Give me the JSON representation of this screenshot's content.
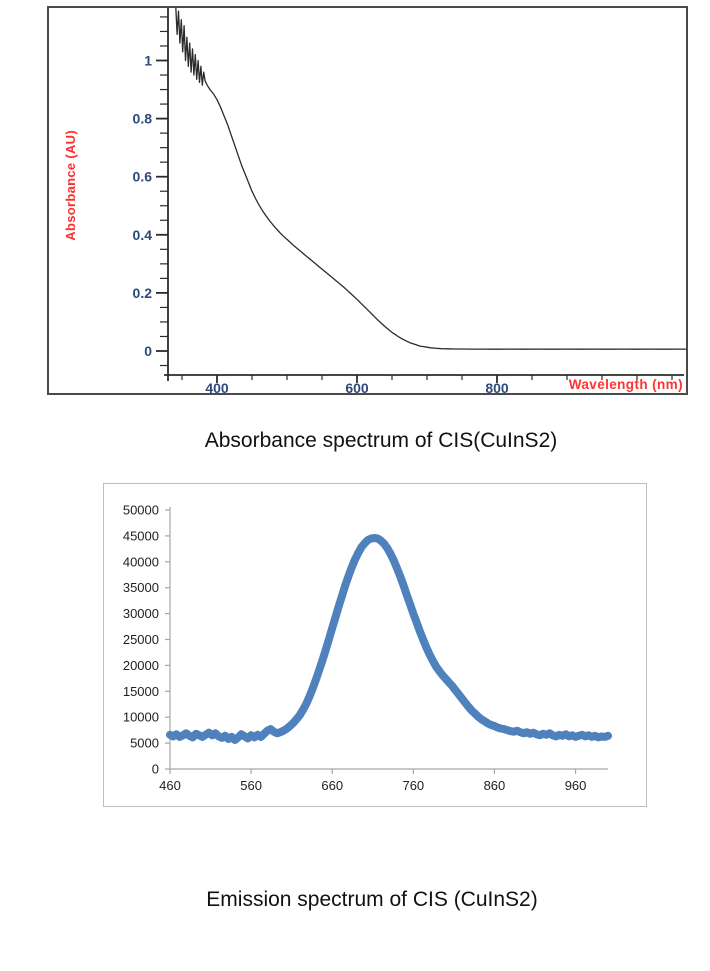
{
  "figures": [
    {
      "caption": "Absorbance spectrum of CIS(CuInS2)"
    },
    {
      "caption": "Emission spectrum of CIS (CuInS2)"
    }
  ],
  "chart_data": [
    {
      "type": "line",
      "title": "",
      "xlabel": "Wavelength (nm)",
      "ylabel": "Absorbance (AU)",
      "xlim": [
        333,
        1080
      ],
      "ylim": [
        -0.1,
        1.18
      ],
      "grid": false,
      "legend": "none",
      "x_ticks": [
        400,
        600,
        800
      ],
      "x_minor_tick_step": 50,
      "x_minor_tick_range": [
        350,
        1050
      ],
      "y_ticks": [
        0,
        0.2,
        0.4,
        0.6,
        0.8,
        1
      ],
      "y_tick_labels": [
        "0",
        "0.2",
        "0.4",
        "0.6",
        "0.8",
        "1"
      ],
      "y_minor_tick_step": 0.05,
      "colors": {
        "curve": "#2b2b2b",
        "axis": "#2b2b2b",
        "axis_title": "#ff2d2d",
        "tick_label": "#2e4a7a",
        "frame": "#4a4a4a"
      },
      "series": [
        {
          "name": "absorbance",
          "x": [
            341,
            343,
            345,
            347,
            349,
            351,
            353,
            355,
            357,
            359,
            361,
            363,
            365,
            367,
            369,
            371,
            373,
            375,
            377,
            379,
            381,
            383,
            386,
            390,
            395,
            400,
            405,
            410,
            415,
            420,
            425,
            430,
            435,
            440,
            445,
            450,
            455,
            460,
            465,
            470,
            475,
            480,
            485,
            490,
            495,
            500,
            505,
            510,
            515,
            520,
            525,
            530,
            535,
            540,
            545,
            550,
            555,
            560,
            565,
            570,
            575,
            580,
            585,
            590,
            595,
            600,
            605,
            610,
            615,
            620,
            625,
            630,
            635,
            640,
            645,
            650,
            655,
            660,
            665,
            670,
            675,
            680,
            685,
            690,
            695,
            700,
            705,
            710,
            715,
            720,
            730,
            740,
            750,
            760,
            780,
            800,
            820,
            840,
            860,
            880,
            900,
            920,
            940,
            960,
            980,
            1000,
            1020,
            1040,
            1060,
            1080
          ],
          "y": [
            1.19,
            1.09,
            1.17,
            1.06,
            1.14,
            1.03,
            1.12,
            1.0,
            1.08,
            0.98,
            1.06,
            0.96,
            1.04,
            0.95,
            1.02,
            0.935,
            1.0,
            0.925,
            0.98,
            0.915,
            0.96,
            0.93,
            0.915,
            0.9,
            0.885,
            0.865,
            0.84,
            0.81,
            0.78,
            0.745,
            0.71,
            0.675,
            0.64,
            0.61,
            0.58,
            0.55,
            0.525,
            0.503,
            0.483,
            0.465,
            0.449,
            0.434,
            0.42,
            0.407,
            0.395,
            0.384,
            0.373,
            0.362,
            0.352,
            0.342,
            0.332,
            0.322,
            0.312,
            0.302,
            0.292,
            0.282,
            0.272,
            0.262,
            0.252,
            0.242,
            0.232,
            0.222,
            0.211,
            0.2,
            0.189,
            0.178,
            0.166,
            0.154,
            0.142,
            0.13,
            0.118,
            0.106,
            0.095,
            0.084,
            0.074,
            0.064,
            0.056,
            0.048,
            0.041,
            0.035,
            0.029,
            0.025,
            0.021,
            0.017,
            0.015,
            0.013,
            0.011,
            0.01,
            0.009,
            0.008,
            0.0075,
            0.007,
            0.0068,
            0.0066,
            0.0064,
            0.0063,
            0.0065,
            0.0062,
            0.0064,
            0.0063,
            0.0065,
            0.0062,
            0.0064,
            0.0063,
            0.0065,
            0.0062,
            0.0064,
            0.0063,
            0.0064,
            0.0063
          ]
        }
      ]
    },
    {
      "type": "scatter",
      "title": "",
      "xlabel": "",
      "ylabel": "",
      "xlim": [
        460,
        1000
      ],
      "ylim": [
        0,
        50000
      ],
      "grid": false,
      "legend": "none",
      "marker": "thick-diamond-band",
      "x_ticks": [
        460,
        560,
        660,
        760,
        860,
        960
      ],
      "y_ticks": [
        0,
        5000,
        10000,
        15000,
        20000,
        25000,
        30000,
        35000,
        40000,
        45000,
        50000
      ],
      "colors": {
        "curve": "#4f81bd",
        "axis": "#a6a6a6",
        "tick_label": "#1f1f1f",
        "frame": "#bfbfbf"
      },
      "series": [
        {
          "name": "emission",
          "x_start": 460,
          "x_step": 4,
          "y": [
            6600,
            6300,
            6700,
            6200,
            6500,
            6900,
            6400,
            6100,
            6800,
            6500,
            6200,
            6600,
            7000,
            6500,
            6900,
            6300,
            6000,
            6400,
            5800,
            6200,
            5600,
            6100,
            6700,
            6300,
            5900,
            6500,
            6100,
            6600,
            6200,
            6800,
            7400,
            7700,
            7200,
            6900,
            7100,
            7400,
            7800,
            8300,
            8900,
            9600,
            10400,
            11400,
            12600,
            14000,
            15600,
            17300,
            19100,
            21000,
            23000,
            25100,
            27200,
            29300,
            31400,
            33400,
            35400,
            37200,
            38900,
            40400,
            41700,
            42800,
            43600,
            44200,
            44500,
            44600,
            44500,
            44100,
            43500,
            42600,
            41500,
            40200,
            38700,
            37100,
            35400,
            33600,
            31800,
            30000,
            28300,
            26600,
            25000,
            23500,
            22100,
            20900,
            19800,
            18900,
            18100,
            17400,
            16700,
            16000,
            15200,
            14400,
            13600,
            12800,
            12000,
            11300,
            10700,
            10100,
            9600,
            9200,
            8800,
            8500,
            8300,
            8000,
            7800,
            7700,
            7500,
            7300,
            7200,
            7400,
            7100,
            6900,
            7100,
            6800,
            7000,
            6700,
            6500,
            6800,
            6600,
            6900,
            6500,
            6300,
            6600,
            6400,
            6700,
            6300,
            6500,
            6200,
            6400,
            6600,
            6300,
            6500,
            6200,
            6400,
            6100,
            6300,
            6200,
            6400
          ]
        }
      ]
    }
  ]
}
